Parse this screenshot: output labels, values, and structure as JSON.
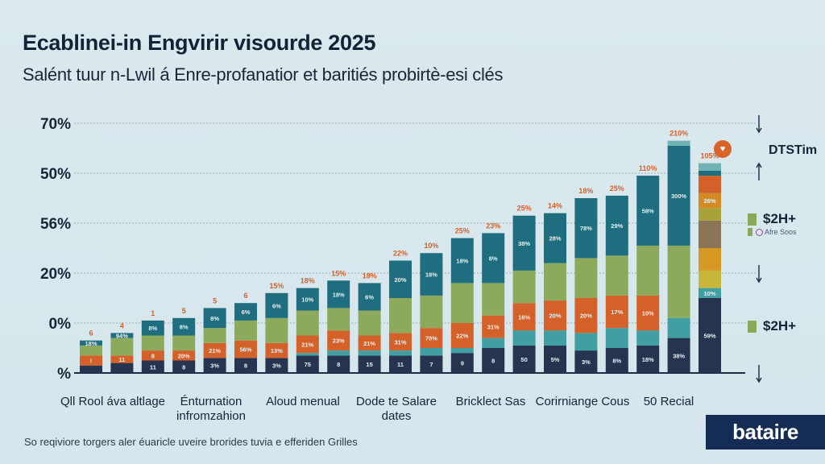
{
  "header": {
    "title": "Ecablinei-in Engvirir visourde 2025",
    "subtitle": "Salént tuur n-Lwil á Enre-profanatior et baritiés probirtè-esi clés"
  },
  "colors": {
    "navy": "#27344f",
    "teal_light": "#3f9fa2",
    "orange": "#d4602a",
    "green": "#8daa5c",
    "teal_dark": "#1e6e80",
    "top_label": "#d4612a",
    "gridline": "#9fb0b8",
    "brand_bg": "#152d55"
  },
  "chart_data": {
    "type": "bar",
    "stacked": true,
    "title": "Ecablinei-in Engvirir visourde 2025",
    "subtitle": "Salént tuur n-Lwil á Enre-profanatior et baritiés probirtè-esi clés",
    "xlabel": "",
    "ylabel": "",
    "ylim": [
      0,
      100
    ],
    "grid": true,
    "y_ticks": [
      {
        "value": 100,
        "label": "70%"
      },
      {
        "value": 80,
        "label": "50%"
      },
      {
        "value": 60,
        "label": "56%"
      },
      {
        "value": 40,
        "label": "20%"
      },
      {
        "value": 20,
        "label": "0%"
      },
      {
        "value": 0,
        "label": "%"
      }
    ],
    "category_labels": [
      "Qll Rool áva altlage",
      "Énturnation infromzahion",
      "Aloud menual",
      "Dode te Salare dates",
      "Bricklect Sas",
      "Corirniange Cous",
      "50 Recial"
    ],
    "series_names": [
      "navy",
      "teal_light",
      "orange",
      "green",
      "teal_dark"
    ],
    "bars": [
      {
        "top_label": "6",
        "segments": [
          3,
          0,
          4,
          4,
          2
        ],
        "labels": [
          "",
          "",
          "!",
          "",
          "18%"
        ]
      },
      {
        "top_label": "4",
        "segments": [
          4,
          0,
          3,
          7,
          2
        ],
        "labels": [
          "",
          "",
          "11",
          "",
          "94%"
        ]
      },
      {
        "top_label": "1",
        "segments": [
          5,
          0,
          4,
          6,
          6
        ],
        "labels": [
          "11",
          "",
          "8",
          "",
          "8%"
        ]
      },
      {
        "top_label": "5",
        "segments": [
          5,
          0,
          4,
          6,
          7
        ],
        "labels": [
          "8",
          "",
          "20%",
          "",
          "8%"
        ]
      },
      {
        "top_label": "5",
        "segments": [
          6,
          0,
          6,
          6,
          8
        ],
        "labels": [
          "3%",
          "",
          "21%",
          "",
          "8%"
        ]
      },
      {
        "top_label": "6",
        "segments": [
          6,
          0,
          7,
          8,
          7
        ],
        "labels": [
          "8",
          "",
          "56%",
          "",
          "6%"
        ]
      },
      {
        "top_label": "15%",
        "segments": [
          6,
          0,
          6,
          10,
          10
        ],
        "labels": [
          "3%",
          "",
          "13%",
          "",
          "6%"
        ]
      },
      {
        "top_label": "18%",
        "segments": [
          7,
          1,
          7,
          10,
          9
        ],
        "labels": [
          "75",
          "",
          "21%",
          "",
          "10%"
        ]
      },
      {
        "top_label": "15%",
        "segments": [
          7,
          2,
          8,
          9,
          11
        ],
        "labels": [
          "8",
          "",
          "23%",
          "",
          "18%"
        ]
      },
      {
        "top_label": "18%",
        "segments": [
          7,
          2,
          6,
          10,
          11
        ],
        "labels": [
          "15",
          "",
          "21%",
          "",
          "6%"
        ]
      },
      {
        "top_label": "22%",
        "segments": [
          7,
          2,
          7,
          14,
          15
        ],
        "labels": [
          "11",
          "",
          "31%",
          "",
          "20%"
        ]
      },
      {
        "top_label": "10%",
        "segments": [
          7,
          3,
          8,
          13,
          17
        ],
        "labels": [
          "7",
          "",
          "70%",
          "",
          "18%"
        ]
      },
      {
        "top_label": "25%",
        "segments": [
          8,
          2,
          10,
          16,
          18
        ],
        "labels": [
          "9",
          "",
          "22%",
          "",
          "18%"
        ]
      },
      {
        "top_label": "23%",
        "segments": [
          10,
          4,
          9,
          13,
          20
        ],
        "labels": [
          "8",
          "",
          "31%",
          "",
          "8%"
        ]
      },
      {
        "top_label": "25%",
        "segments": [
          11,
          6,
          11,
          13,
          22
        ],
        "labels": [
          "50",
          "",
          "16%",
          "",
          "38%"
        ]
      },
      {
        "top_label": "14%",
        "segments": [
          11,
          6,
          12,
          15,
          20
        ],
        "labels": [
          "5%",
          "",
          "20%",
          "",
          "28%"
        ]
      },
      {
        "top_label": "18%",
        "segments": [
          9,
          7,
          14,
          16,
          24
        ],
        "labels": [
          "3%",
          "",
          "20%",
          "",
          "78%"
        ]
      },
      {
        "top_label": "25%",
        "segments": [
          10,
          8,
          13,
          16,
          24
        ],
        "labels": [
          "8%",
          "",
          "17%",
          "",
          "29%"
        ]
      },
      {
        "top_label": "110%",
        "segments": [
          11,
          6,
          14,
          20,
          28
        ],
        "labels": [
          "18%",
          "",
          "10%",
          "",
          "58%"
        ]
      },
      {
        "top_label": "210%",
        "segments": [
          14,
          8,
          0,
          29,
          40
        ],
        "labels": [
          "38%",
          "",
          "",
          "",
          "300%"
        ]
      },
      {
        "top_label": "105%",
        "segments": [
          30,
          4,
          0,
          45,
          0
        ],
        "labels": [
          "59%",
          "10%",
          "",
          "26%",
          ""
        ],
        "multicolor": true
      }
    ],
    "legend": {
      "title": "DTSTim",
      "position": "right",
      "items": [
        {
          "label": "$2H+",
          "sub": "Afre Soos"
        },
        {
          "label": "$2H+"
        }
      ]
    }
  },
  "footnote": "So reqiviore torgers aler éuaricle uveire brorides tuvia e efferiden Grilles",
  "brand": {
    "name": "bataire"
  }
}
